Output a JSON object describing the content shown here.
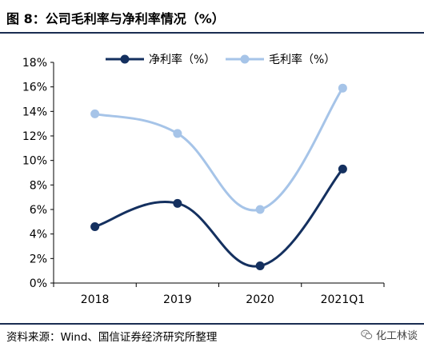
{
  "header": {
    "title": "图 8：公司毛利率与净利率情况（%）"
  },
  "footer": {
    "source": "资料来源：Wind、国信证券经济研究所整理",
    "watermark": "化工林谈",
    "watermark_icon": "wechat-icon"
  },
  "colors": {
    "rule": "#1a2d52",
    "net_margin": "#14305f",
    "gross_margin": "#a6c4e8"
  },
  "chart_data": {
    "type": "line",
    "categories": [
      "2018",
      "2019",
      "2020",
      "2021Q1"
    ],
    "series": [
      {
        "name": "净利率（%）",
        "values": [
          4.6,
          6.5,
          1.4,
          9.3
        ],
        "color": "#14305f",
        "smooth": true
      },
      {
        "name": "毛利率（%）",
        "values": [
          13.8,
          12.2,
          6.0,
          15.9
        ],
        "color": "#a6c4e8",
        "smooth": true
      }
    ],
    "yticks": [
      "0%",
      "2%",
      "4%",
      "6%",
      "8%",
      "10%",
      "12%",
      "14%",
      "16%",
      "18%"
    ],
    "ylim": [
      0,
      18
    ],
    "legend": "top-center",
    "grid": false
  }
}
